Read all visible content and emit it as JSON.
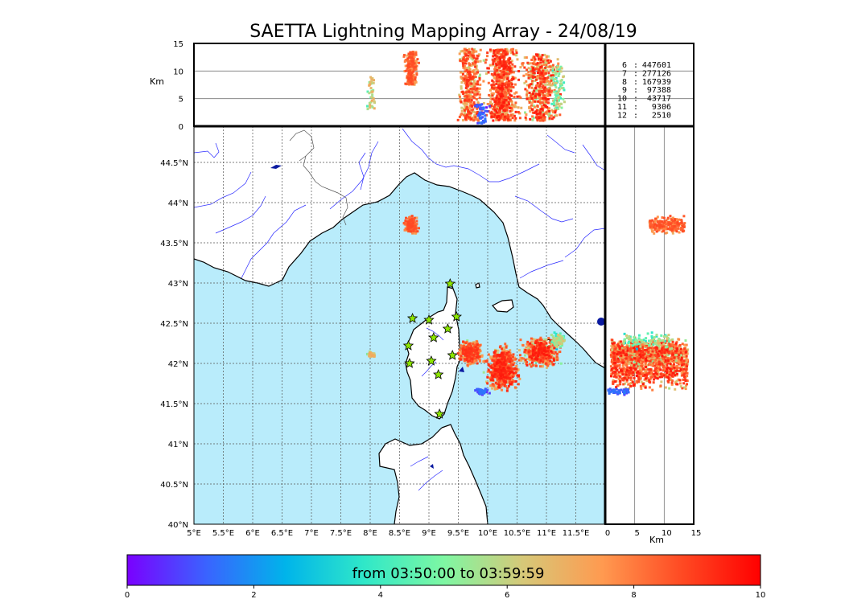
{
  "title": "SAETTA Lightning Mapping Array - 24/08/19",
  "colors": {
    "sea": "#b9ecfb",
    "land": "#ffffff",
    "river": "#2a2aff",
    "grid": "#555555",
    "lake": "#0a1aa0",
    "station": "#8ce600",
    "highlight": "#ff0000"
  },
  "map": {
    "lon_ticks": [
      "5°E",
      "5.5°E",
      "6°E",
      "6.5°E",
      "7°E",
      "7.5°E",
      "8°E",
      "8.5°E",
      "9°E",
      "9.5°E",
      "10°E",
      "10.5°E",
      "11°E",
      "11.5°E"
    ],
    "lat_ticks": [
      "40°N",
      "40.5°N",
      "41°N",
      "41.5°N",
      "42°N",
      "42.5°N",
      "43°N",
      "43.5°N",
      "44°N",
      "44.5°N"
    ],
    "lon_range": [
      5,
      12
    ],
    "lat_range": [
      40,
      44.95
    ],
    "stations": [
      [
        9.36,
        42.99
      ],
      [
        8.72,
        42.56
      ],
      [
        9.0,
        42.54
      ],
      [
        9.47,
        42.58
      ],
      [
        9.32,
        42.43
      ],
      [
        9.08,
        42.32
      ],
      [
        8.65,
        42.22
      ],
      [
        9.4,
        42.1
      ],
      [
        8.67,
        42.0
      ],
      [
        9.04,
        42.03
      ],
      [
        9.16,
        41.86
      ],
      [
        9.18,
        41.37
      ]
    ]
  },
  "top_panel": {
    "ylabel": "Km",
    "y_ticks": [
      "0",
      "5",
      "10",
      "15"
    ],
    "range": [
      0,
      15
    ]
  },
  "right_panel": {
    "xlabel": "Km",
    "x_ticks": [
      "0",
      "5",
      "10",
      "15"
    ],
    "range": [
      0,
      15
    ]
  },
  "stats": [
    {
      "stations": "6",
      "count": "447601",
      "highlight": false
    },
    {
      "stations": "7",
      "count": "277126",
      "highlight": true
    },
    {
      "stations": "8",
      "count": "167939",
      "highlight": false
    },
    {
      "stations": "9",
      "count": "97388",
      "highlight": false
    },
    {
      "stations": "10",
      "count": "43717",
      "highlight": false
    },
    {
      "stations": "11",
      "count": "9306",
      "highlight": false
    },
    {
      "stations": "12",
      "count": "2510",
      "highlight": false
    }
  ],
  "colorbar": {
    "label": "from 03:50:00 to 03:59:59",
    "ticks": [
      "0",
      "2",
      "4",
      "6",
      "8",
      "10"
    ],
    "range": [
      0,
      10
    ],
    "stops": [
      "#7a00ff",
      "#3a63ff",
      "#00b4ea",
      "#30e8c8",
      "#7ef7a3",
      "#d6c878",
      "#ff9a50",
      "#ff4a23",
      "#ff0000"
    ]
  },
  "clusters": [
    {
      "lon": [
        8.56,
        8.84
      ],
      "lat": [
        43.58,
        43.86
      ],
      "alt": [
        7.5,
        13.5
      ],
      "time": [
        6.8,
        8.8
      ],
      "n": 200
    },
    {
      "lon": [
        7.92,
        8.12
      ],
      "lat": [
        42.06,
        42.16
      ],
      "alt": [
        3,
        9
      ],
      "time": [
        4.2,
        7.2
      ],
      "n": 40
    },
    {
      "lon": [
        9.45,
        9.95
      ],
      "lat": [
        41.95,
        42.32
      ],
      "alt": [
        1,
        14
      ],
      "time": [
        5.2,
        9.2
      ],
      "n": 400
    },
    {
      "lon": [
        9.9,
        10.6
      ],
      "lat": [
        41.6,
        42.28
      ],
      "alt": [
        1,
        14
      ],
      "time": [
        5.5,
        9.6
      ],
      "n": 700
    },
    {
      "lon": [
        10.5,
        11.3
      ],
      "lat": [
        41.9,
        42.38
      ],
      "alt": [
        1,
        13
      ],
      "time": [
        4.5,
        9.6
      ],
      "n": 500
    },
    {
      "lon": [
        9.75,
        10.05
      ],
      "lat": [
        41.6,
        41.7
      ],
      "alt": [
        0.5,
        4
      ],
      "time": [
        0.2,
        1.6
      ],
      "n": 50
    },
    {
      "lon": [
        11.05,
        11.35
      ],
      "lat": [
        42.15,
        42.42
      ],
      "alt": [
        3,
        11
      ],
      "time": [
        2.5,
        6.5
      ],
      "n": 80
    }
  ]
}
